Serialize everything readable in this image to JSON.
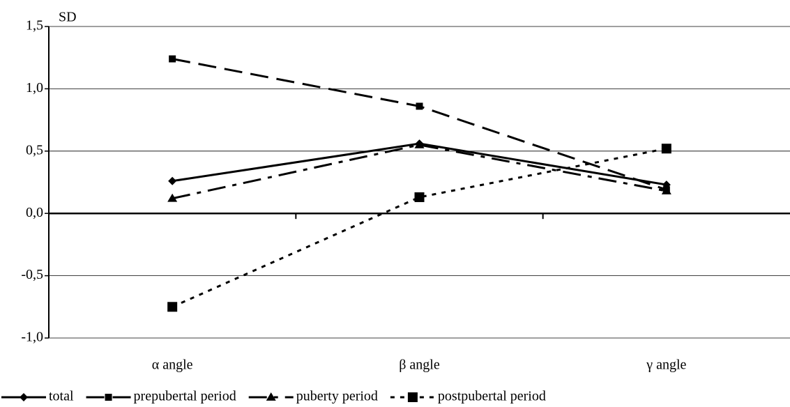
{
  "chart_data": {
    "type": "line",
    "y_label": "SD",
    "categories": [
      "α angle",
      "β angle",
      "γ angle"
    ],
    "series": [
      {
        "name": "total",
        "color": "#000000",
        "values": [
          0.26,
          0.56,
          0.23
        ]
      },
      {
        "name": "prepubertal period",
        "color": "#000000",
        "values": [
          1.24,
          0.86,
          0.19
        ]
      },
      {
        "name": "puberty period",
        "color": "#000000",
        "values": [
          0.12,
          0.55,
          0.18
        ]
      },
      {
        "name": "postpubertal period",
        "color": "#000000",
        "values": [
          -0.75,
          0.13,
          0.52
        ]
      }
    ],
    "ylim": [
      -1.0,
      1.5
    ],
    "yticks": [
      {
        "value": -1.0,
        "label": "-1,0"
      },
      {
        "value": -0.5,
        "label": "-0,5"
      },
      {
        "value": 0.0,
        "label": "0,0"
      },
      {
        "value": 0.5,
        "label": "0,5"
      },
      {
        "value": 1.0,
        "label": "1,0"
      },
      {
        "value": 1.5,
        "label": "1,5"
      }
    ],
    "grid": true,
    "legend": "bottom"
  }
}
